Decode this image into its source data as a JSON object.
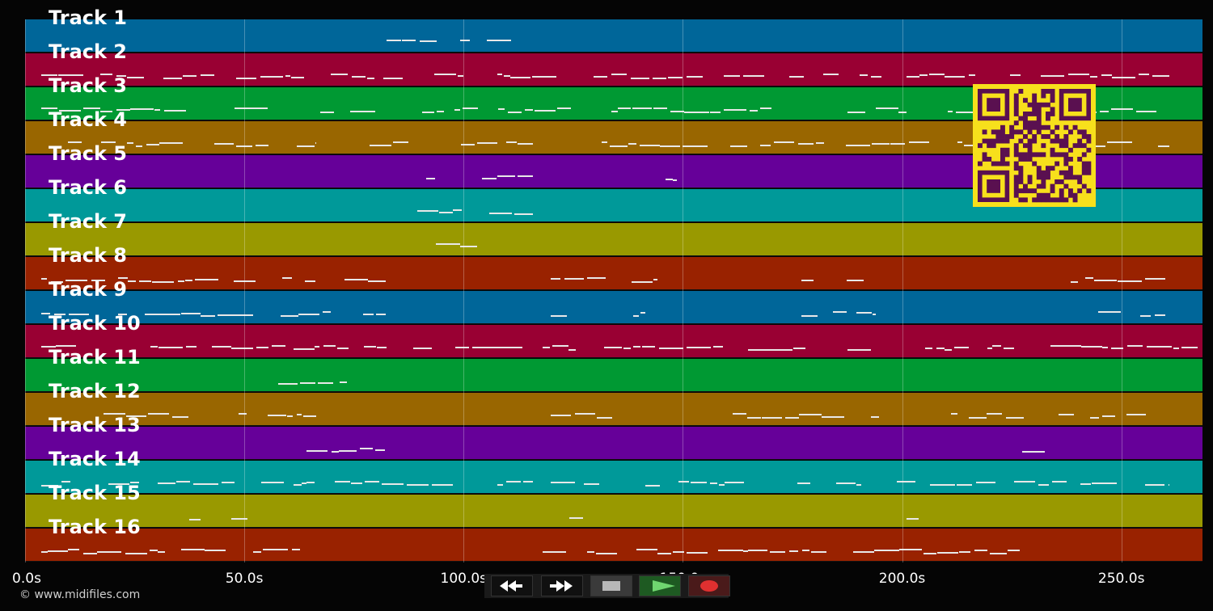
{
  "tracks": [
    {
      "label": "Track 1",
      "color": "#006699"
    },
    {
      "label": "Track 2",
      "color": "#990033"
    },
    {
      "label": "Track 3",
      "color": "#009933"
    },
    {
      "label": "Track 4",
      "color": "#996600"
    },
    {
      "label": "Track 5",
      "color": "#660099"
    },
    {
      "label": "Track 6",
      "color": "#009999"
    },
    {
      "label": "Track 7",
      "color": "#999900"
    },
    {
      "label": "Track 8",
      "color": "#992200"
    },
    {
      "label": "Track 9",
      "color": "#006699"
    },
    {
      "label": "Track 10",
      "color": "#990033"
    },
    {
      "label": "Track 11",
      "color": "#009933"
    },
    {
      "label": "Track 12",
      "color": "#996600"
    },
    {
      "label": "Track 13",
      "color": "#660099"
    },
    {
      "label": "Track 14",
      "color": "#009999"
    },
    {
      "label": "Track 15",
      "color": "#999900"
    },
    {
      "label": "Track 16",
      "color": "#992200"
    }
  ],
  "timeline": {
    "ticks": [
      "0.0s",
      "50.0s",
      "100.0s",
      "150.0s",
      "200.0s",
      "250.0s"
    ],
    "tick_seconds": [
      0,
      50,
      100,
      150,
      200,
      250
    ],
    "duration_seconds": 268.5
  },
  "copyright": "© www.midifiles.com",
  "transport": {
    "buttons": [
      {
        "name": "rewind",
        "icon": "rewind-icon"
      },
      {
        "name": "fast-forward",
        "icon": "fast-forward-icon"
      },
      {
        "name": "stop",
        "icon": "stop-icon"
      },
      {
        "name": "play",
        "icon": "play-icon"
      },
      {
        "name": "record",
        "icon": "record-icon"
      }
    ]
  },
  "qr_code": {
    "icon": "qr-code-icon",
    "color": "#f7e01c",
    "module_color": "#5a1050"
  }
}
